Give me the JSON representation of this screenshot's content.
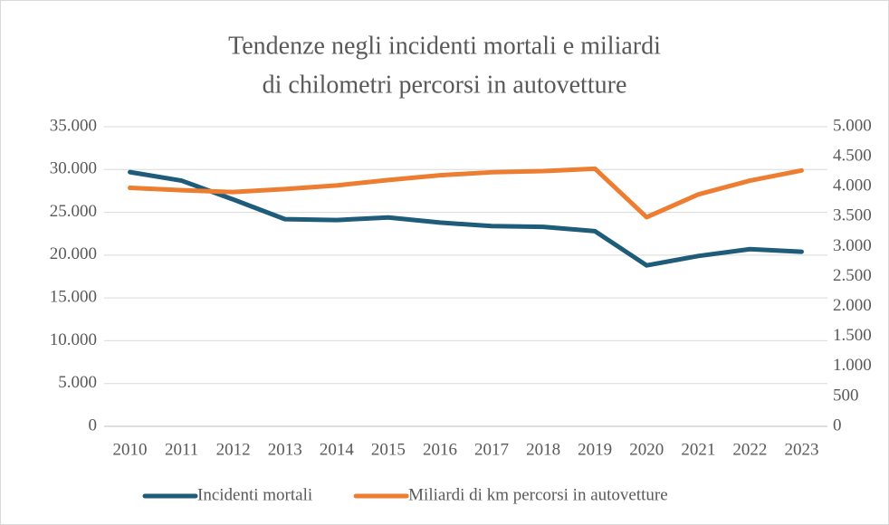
{
  "chart_data": {
    "type": "line",
    "title": [
      "Tendenze negli incidenti mortali e miliardi",
      "di chilometri percorsi in autovetture"
    ],
    "categories": [
      "2010",
      "2011",
      "2012",
      "2013",
      "2014",
      "2015",
      "2016",
      "2017",
      "2018",
      "2019",
      "2020",
      "2021",
      "2022",
      "2023"
    ],
    "series": [
      {
        "name": "Incidenti mortali",
        "color": "#1f5c7a",
        "axis": "y",
        "values": [
          29700,
          28700,
          26500,
          24200,
          24100,
          24400,
          23800,
          23400,
          23300,
          22800,
          18800,
          19900,
          20700,
          20400
        ]
      },
      {
        "name": "Miliardi di km percorsi in autovetture",
        "color": "#ed7d31",
        "axis": "y2",
        "values": [
          3980,
          3940,
          3910,
          3960,
          4020,
          4110,
          4190,
          4240,
          4260,
          4300,
          3490,
          3870,
          4100,
          4270
        ]
      }
    ],
    "ylim": [
      0,
      35000
    ],
    "yticks": [
      0,
      {
        "value": 5000,
        "label": "5.000"
      },
      {
        "value": 10000,
        "label": "10.000"
      },
      {
        "value": 15000,
        "label": "15.000"
      },
      {
        "value": 20000,
        "label": "20.000"
      },
      {
        "value": 25000,
        "label": "25.000"
      },
      {
        "value": 30000,
        "label": "30.000"
      },
      {
        "value": 35000,
        "label": "35.000"
      }
    ],
    "y2lim": [
      0,
      5000
    ],
    "y2ticks": [
      0,
      500,
      {
        "value": 1000,
        "label": "1.000"
      },
      {
        "value": 1500,
        "label": "1.500"
      },
      {
        "value": 2000,
        "label": "2.000"
      },
      {
        "value": 2500,
        "label": "2.500"
      },
      {
        "value": 3000,
        "label": "3.000"
      },
      {
        "value": 3500,
        "label": "3.500"
      },
      {
        "value": 4000,
        "label": "4.000"
      },
      {
        "value": 4500,
        "label": "4.500"
      },
      {
        "value": 5000,
        "label": "5.000"
      }
    ],
    "grid": true,
    "legend": "bottom"
  }
}
